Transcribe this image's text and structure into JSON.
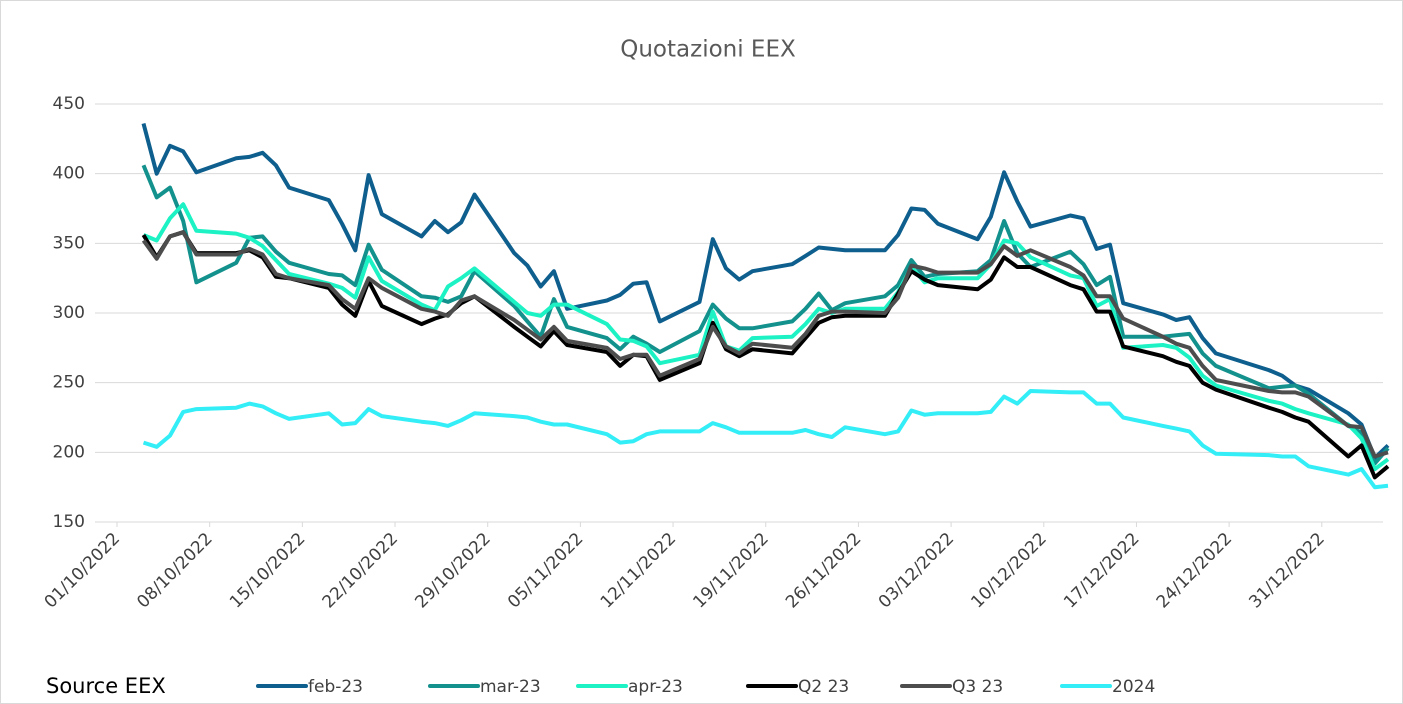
{
  "chart_data": {
    "type": "line",
    "title": "Quotazioni EEX",
    "source": "Source EEX",
    "x": [
      "03/10/2022",
      "04/10/2022",
      "05/10/2022",
      "06/10/2022",
      "07/10/2022",
      "10/10/2022",
      "11/10/2022",
      "12/10/2022",
      "13/10/2022",
      "14/10/2022",
      "17/10/2022",
      "18/10/2022",
      "19/10/2022",
      "20/10/2022",
      "21/10/2022",
      "24/10/2022",
      "25/10/2022",
      "26/10/2022",
      "27/10/2022",
      "28/10/2022",
      "31/10/2022",
      "01/11/2022",
      "02/11/2022",
      "03/11/2022",
      "04/11/2022",
      "07/11/2022",
      "08/11/2022",
      "09/11/2022",
      "10/11/2022",
      "11/11/2022",
      "14/11/2022",
      "15/11/2022",
      "16/11/2022",
      "17/11/2022",
      "18/11/2022",
      "21/11/2022",
      "22/11/2022",
      "23/11/2022",
      "24/11/2022",
      "25/11/2022",
      "28/11/2022",
      "29/11/2022",
      "30/11/2022",
      "01/12/2022",
      "02/12/2022",
      "05/12/2022",
      "06/12/2022",
      "07/12/2022",
      "08/12/2022",
      "09/12/2022",
      "12/12/2022",
      "13/12/2022",
      "14/12/2022",
      "15/12/2022",
      "16/12/2022",
      "19/12/2022",
      "20/12/2022",
      "21/12/2022",
      "22/12/2022",
      "23/12/2022",
      "27/12/2022",
      "28/12/2022",
      "29/12/2022",
      "30/12/2022",
      "02/01/2023",
      "03/01/2023",
      "04/01/2023",
      "05/01/2023"
    ],
    "series": [
      {
        "name": "feb-23",
        "color": "#0e5f8e",
        "values": [
          436,
          400,
          420,
          416,
          401,
          411,
          412,
          415,
          406,
          390,
          381,
          364,
          345,
          399,
          371,
          355,
          366,
          358,
          365,
          385,
          343,
          334,
          319,
          330,
          303,
          309,
          313,
          321,
          322,
          294,
          308,
          353,
          332,
          324,
          330,
          335,
          341,
          347,
          346,
          345,
          345,
          356,
          375,
          374,
          364,
          353,
          369,
          401,
          380,
          362,
          370,
          368,
          346,
          349,
          307,
          299,
          295,
          297,
          282,
          271,
          259,
          255,
          248,
          245,
          228,
          220,
          196,
          205
        ]
      },
      {
        "name": "mar-23",
        "color": "#13918d",
        "values": [
          406,
          383,
          390,
          366,
          322,
          336,
          354,
          355,
          344,
          336,
          328,
          327,
          320,
          349,
          331,
          312,
          311,
          308,
          312,
          330,
          305,
          294,
          283,
          310,
          290,
          282,
          274,
          283,
          278,
          272,
          287,
          306,
          296,
          289,
          289,
          294,
          303,
          314,
          302,
          307,
          312,
          320,
          338,
          326,
          328,
          330,
          338,
          366,
          343,
          333,
          344,
          335,
          320,
          326,
          283,
          283,
          284,
          285,
          271,
          262,
          246,
          247,
          248,
          242,
          219,
          214,
          192,
          203
        ]
      },
      {
        "name": "apr-23",
        "color": "#1cf2c4",
        "values": [
          356,
          352,
          368,
          378,
          359,
          357,
          354,
          348,
          338,
          328,
          321,
          318,
          311,
          340,
          323,
          306,
          302,
          319,
          325,
          332,
          308,
          300,
          298,
          306,
          306,
          292,
          281,
          280,
          276,
          264,
          270,
          301,
          276,
          273,
          282,
          283,
          292,
          303,
          300,
          303,
          303,
          315,
          333,
          322,
          325,
          325,
          335,
          352,
          350,
          340,
          327,
          325,
          305,
          310,
          275,
          277,
          275,
          268,
          255,
          248,
          237,
          235,
          231,
          228,
          220,
          210,
          188,
          195
        ]
      },
      {
        "name": "Q2 23",
        "color": "#000000",
        "values": [
          356,
          340,
          355,
          358,
          343,
          343,
          345,
          340,
          326,
          325,
          318,
          306,
          298,
          323,
          305,
          292,
          296,
          299,
          307,
          312,
          290,
          283,
          276,
          287,
          277,
          272,
          262,
          270,
          269,
          252,
          264,
          293,
          274,
          269,
          274,
          271,
          282,
          293,
          297,
          298,
          298,
          314,
          330,
          324,
          320,
          317,
          324,
          340,
          333,
          333,
          320,
          317,
          301,
          301,
          276,
          269,
          265,
          262,
          250,
          245,
          232,
          229,
          225,
          222,
          197,
          205,
          182,
          190
        ]
      },
      {
        "name": "Q3 23",
        "color": "#4d4d4d",
        "values": [
          352,
          339,
          355,
          358,
          342,
          342,
          346,
          342,
          328,
          325,
          320,
          310,
          303,
          325,
          318,
          303,
          301,
          298,
          309,
          312,
          295,
          288,
          281,
          290,
          280,
          275,
          267,
          270,
          270,
          255,
          267,
          290,
          276,
          271,
          278,
          275,
          285,
          298,
          301,
          301,
          300,
          311,
          334,
          332,
          329,
          329,
          335,
          348,
          341,
          345,
          333,
          327,
          312,
          312,
          296,
          283,
          278,
          275,
          262,
          252,
          244,
          243,
          243,
          240,
          219,
          218,
          197,
          200
        ]
      },
      {
        "name": "2024",
        "color": "#33eef6",
        "values": [
          207,
          204,
          212,
          229,
          231,
          232,
          235,
          233,
          228,
          224,
          228,
          220,
          221,
          231,
          226,
          222,
          221,
          219,
          223,
          228,
          226,
          225,
          222,
          220,
          220,
          213,
          207,
          208,
          213,
          215,
          215,
          221,
          218,
          214,
          214,
          214,
          216,
          213,
          211,
          218,
          213,
          215,
          230,
          227,
          228,
          228,
          229,
          240,
          235,
          244,
          243,
          243,
          235,
          235,
          225,
          219,
          217,
          215,
          205,
          199,
          198,
          197,
          197,
          190,
          184,
          188,
          175,
          176
        ]
      }
    ],
    "xlim": [
      "01/10/2022",
      "05/01/2023"
    ],
    "xticks": [
      "01/10/2022",
      "08/10/2022",
      "15/10/2022",
      "22/10/2022",
      "29/10/2022",
      "05/11/2022",
      "12/11/2022",
      "19/11/2022",
      "26/11/2022",
      "03/12/2022",
      "10/12/2022",
      "17/12/2022",
      "24/12/2022",
      "31/12/2022"
    ],
    "ylim": [
      150,
      450
    ],
    "yticks": [
      150,
      200,
      250,
      300,
      350,
      400,
      450
    ],
    "grid": true,
    "legend": "bottom"
  }
}
